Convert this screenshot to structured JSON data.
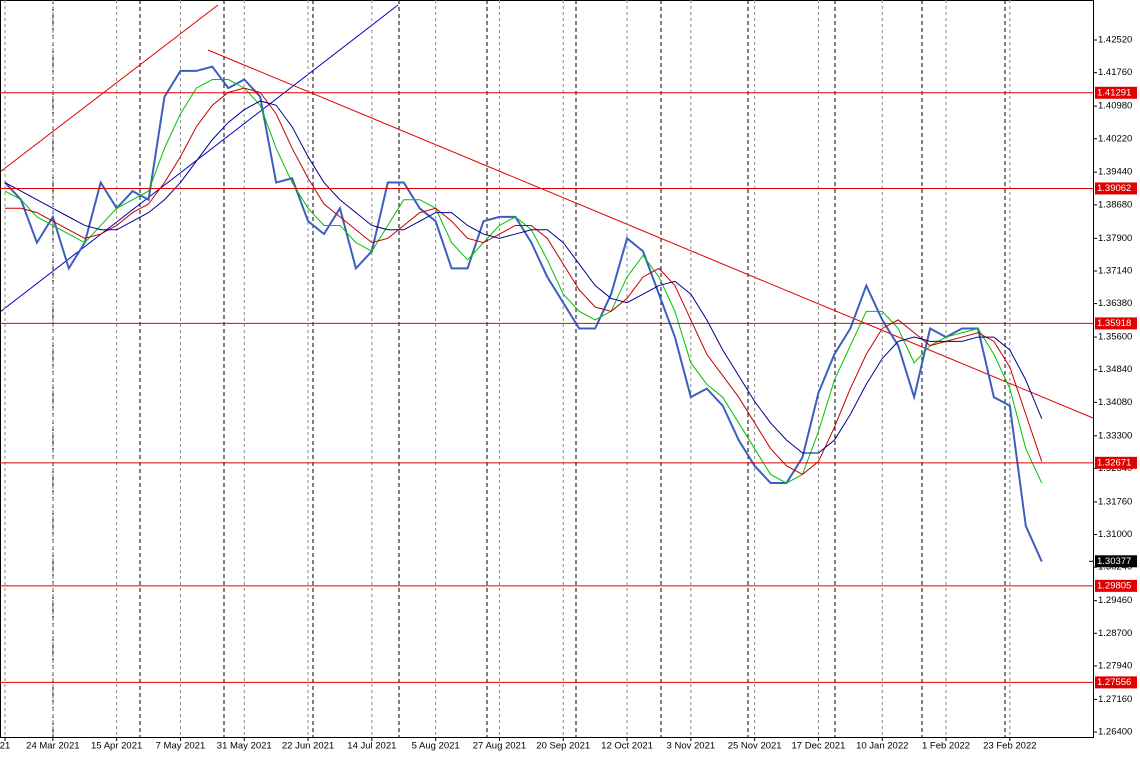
{
  "chart_data": {
    "type": "line",
    "categories": [
      "21",
      null,
      null,
      "24 Mar 2021",
      null,
      null,
      null,
      "15 Apr 2021",
      null,
      null,
      null,
      "7 May 2021",
      null,
      null,
      null,
      "31 May 2021",
      null,
      null,
      null,
      "22 Jun 2021",
      null,
      null,
      null,
      "14 Jul 2021",
      null,
      null,
      null,
      "5 Aug 2021",
      null,
      null,
      null,
      "27 Aug 2021",
      null,
      null,
      null,
      "20 Sep 2021",
      null,
      null,
      null,
      "12 Oct 2021",
      null,
      null,
      null,
      "3 Nov 2021",
      null,
      null,
      null,
      "25 Nov 2021",
      null,
      null,
      null,
      "17 Dec 2021",
      null,
      null,
      null,
      "10 Jan 2022",
      null,
      null,
      null,
      "1 Feb 2022",
      null,
      null,
      null,
      "23 Feb 2022",
      null,
      null
    ],
    "series": [
      {
        "color": "#3a5fbf",
        "values": [
          1.392,
          1.388,
          1.378,
          1.384,
          1.372,
          1.378,
          1.392,
          1.386,
          1.39,
          1.388,
          1.412,
          1.418,
          1.418,
          1.419,
          1.414,
          1.416,
          1.412,
          1.392,
          1.393,
          1.383,
          1.38,
          1.386,
          1.372,
          1.376,
          1.392,
          1.392,
          1.386,
          1.383,
          1.372,
          1.372,
          1.383,
          1.384,
          1.384,
          1.378,
          1.37,
          1.364,
          1.358,
          1.358,
          1.366,
          1.379,
          1.376,
          1.366,
          1.356,
          1.342,
          1.344,
          1.34,
          1.332,
          1.326,
          1.322,
          1.322,
          1.328,
          1.343,
          1.352,
          1.358,
          1.368,
          1.36,
          1.354,
          1.342,
          1.358,
          1.356,
          1.358,
          1.358,
          1.342,
          1.34,
          1.312,
          1.3037
        ]
      },
      {
        "color": "#00c000",
        "values": [
          1.39,
          1.388,
          1.384,
          1.382,
          1.38,
          1.378,
          1.382,
          1.386,
          1.388,
          1.39,
          1.4,
          1.408,
          1.414,
          1.416,
          1.416,
          1.414,
          1.41,
          1.4,
          1.392,
          1.386,
          1.382,
          1.382,
          1.378,
          1.376,
          1.382,
          1.388,
          1.388,
          1.386,
          1.378,
          1.374,
          1.378,
          1.382,
          1.384,
          1.381,
          1.374,
          1.366,
          1.362,
          1.36,
          1.362,
          1.37,
          1.375,
          1.37,
          1.362,
          1.35,
          1.345,
          1.342,
          1.336,
          1.33,
          1.324,
          1.322,
          1.324,
          1.334,
          1.346,
          1.354,
          1.362,
          1.362,
          1.358,
          1.35,
          1.354,
          1.356,
          1.357,
          1.358,
          1.352,
          1.344,
          1.33,
          1.322
        ]
      },
      {
        "color": "#c00000",
        "values": [
          1.386,
          1.386,
          1.385,
          1.383,
          1.381,
          1.379,
          1.38,
          1.382,
          1.385,
          1.387,
          1.392,
          1.398,
          1.405,
          1.41,
          1.413,
          1.414,
          1.413,
          1.408,
          1.4,
          1.393,
          1.387,
          1.384,
          1.381,
          1.378,
          1.379,
          1.382,
          1.385,
          1.386,
          1.383,
          1.379,
          1.378,
          1.38,
          1.382,
          1.382,
          1.379,
          1.373,
          1.367,
          1.363,
          1.362,
          1.365,
          1.37,
          1.372,
          1.368,
          1.36,
          1.352,
          1.347,
          1.342,
          1.336,
          1.33,
          1.326,
          1.324,
          1.327,
          1.335,
          1.344,
          1.352,
          1.358,
          1.36,
          1.357,
          1.354,
          1.355,
          1.356,
          1.357,
          1.355,
          1.349,
          1.338,
          1.327
        ]
      },
      {
        "color": "#000090",
        "values": [
          1.392,
          1.39,
          1.388,
          1.386,
          1.384,
          1.382,
          1.381,
          1.381,
          1.383,
          1.385,
          1.388,
          1.392,
          1.397,
          1.402,
          1.406,
          1.409,
          1.411,
          1.41,
          1.405,
          1.398,
          1.392,
          1.388,
          1.385,
          1.382,
          1.381,
          1.381,
          1.383,
          1.385,
          1.385,
          1.382,
          1.38,
          1.379,
          1.38,
          1.381,
          1.381,
          1.378,
          1.373,
          1.368,
          1.365,
          1.364,
          1.366,
          1.368,
          1.369,
          1.366,
          1.36,
          1.353,
          1.347,
          1.341,
          1.336,
          1.332,
          1.329,
          1.329,
          1.332,
          1.338,
          1.345,
          1.351,
          1.355,
          1.356,
          1.355,
          1.355,
          1.355,
          1.356,
          1.356,
          1.353,
          1.346,
          1.337
        ]
      }
    ],
    "ylim": [
      1.26284,
      1.43452
    ],
    "yticks": [
      {
        "value": 1.4252,
        "label": "1.42520"
      },
      {
        "value": 1.4176,
        "label": "1.41760"
      },
      {
        "value": 1.4098,
        "label": "1.40980"
      },
      {
        "value": 1.4022,
        "label": "1.40220"
      },
      {
        "value": 1.3944,
        "label": "1.39440"
      },
      {
        "value": 1.3868,
        "label": "1.38680"
      },
      {
        "value": 1.379,
        "label": "1.37900"
      },
      {
        "value": 1.3714,
        "label": "1.37140"
      },
      {
        "value": 1.3638,
        "label": "1.36380"
      },
      {
        "value": 1.356,
        "label": "1.35600"
      },
      {
        "value": 1.3484,
        "label": "1.34840"
      },
      {
        "value": 1.3408,
        "label": "1.34080"
      },
      {
        "value": 1.333,
        "label": "1.33300"
      },
      {
        "value": 1.3254,
        "label": "1.32540"
      },
      {
        "value": 1.3176,
        "label": "1.31760"
      },
      {
        "value": 1.31,
        "label": "1.31000"
      },
      {
        "value": 1.3024,
        "label": "1.30240"
      },
      {
        "value": 1.2946,
        "label": "1.29460"
      },
      {
        "value": 1.287,
        "label": "1.28700"
      },
      {
        "value": 1.2794,
        "label": "1.27940"
      },
      {
        "value": 1.2716,
        "label": "1.27160"
      },
      {
        "value": 1.264,
        "label": "1.26400"
      }
    ],
    "levels": [
      {
        "value": 1.41291,
        "label": "1.41291"
      },
      {
        "value": 1.39062,
        "label": "1.39062"
      },
      {
        "value": 1.35918,
        "label": "1.35918"
      },
      {
        "value": 1.32671,
        "label": "1.32671"
      },
      {
        "value": 1.29805,
        "label": "1.29805"
      },
      {
        "value": 1.27556,
        "label": "1.27556"
      }
    ],
    "level_color": "#e00000",
    "last_price": {
      "value": 1.30377,
      "label": "1.30377"
    },
    "grid": true
  }
}
